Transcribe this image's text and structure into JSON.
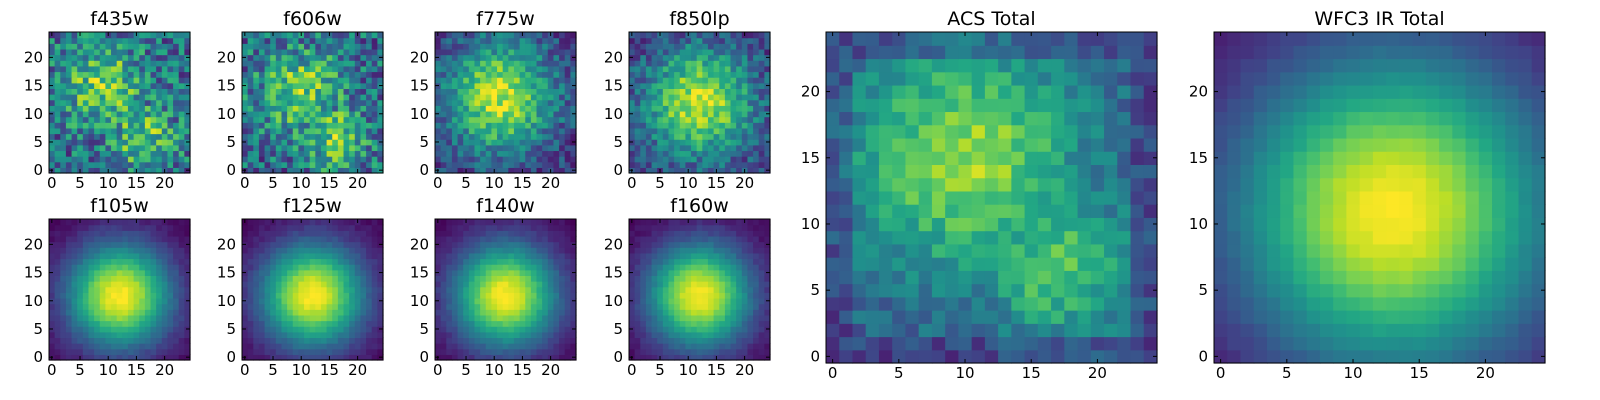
{
  "chart_data": {
    "type": "heatmap",
    "colormap": "viridis",
    "grid": false,
    "panels": [
      {
        "id": "f435w",
        "title": "f435w",
        "grid_size": 25,
        "xlim": [
          0,
          24
        ],
        "ylim": [
          0,
          24
        ],
        "xticks": [
          0,
          5,
          10,
          15,
          20
        ],
        "yticks": [
          0,
          5,
          10,
          15,
          20
        ],
        "peak": [
          9,
          15
        ],
        "pattern": "noisy-double"
      },
      {
        "id": "f606w",
        "title": "f606w",
        "grid_size": 25,
        "xlim": [
          0,
          24
        ],
        "ylim": [
          0,
          24
        ],
        "xticks": [
          0,
          5,
          10,
          15,
          20
        ],
        "yticks": [
          0,
          5,
          10,
          15,
          20
        ],
        "peak": [
          10,
          14
        ],
        "pattern": "noisy-double"
      },
      {
        "id": "f775w",
        "title": "f775w",
        "grid_size": 25,
        "xlim": [
          0,
          24
        ],
        "ylim": [
          0,
          24
        ],
        "xticks": [
          0,
          5,
          10,
          15,
          20
        ],
        "yticks": [
          0,
          5,
          10,
          15,
          20
        ],
        "peak": [
          11,
          13
        ],
        "pattern": "noisy"
      },
      {
        "id": "f850lp",
        "title": "f850lp",
        "grid_size": 25,
        "xlim": [
          0,
          24
        ],
        "ylim": [
          0,
          24
        ],
        "xticks": [
          0,
          5,
          10,
          15,
          20
        ],
        "yticks": [
          0,
          5,
          10,
          15,
          20
        ],
        "peak": [
          12,
          12
        ],
        "pattern": "noisy"
      },
      {
        "id": "f105w",
        "title": "f105w",
        "grid_size": 25,
        "xlim": [
          0,
          24
        ],
        "ylim": [
          0,
          24
        ],
        "xticks": [
          0,
          5,
          10,
          15,
          20
        ],
        "yticks": [
          0,
          5,
          10,
          15,
          20
        ],
        "peak": [
          12,
          11
        ],
        "pattern": "smooth"
      },
      {
        "id": "f125w",
        "title": "f125w",
        "grid_size": 25,
        "xlim": [
          0,
          24
        ],
        "ylim": [
          0,
          24
        ],
        "xticks": [
          0,
          5,
          10,
          15,
          20
        ],
        "yticks": [
          0,
          5,
          10,
          15,
          20
        ],
        "peak": [
          12,
          11
        ],
        "pattern": "smooth"
      },
      {
        "id": "f140w",
        "title": "f140w",
        "grid_size": 25,
        "xlim": [
          0,
          24
        ],
        "ylim": [
          0,
          24
        ],
        "xticks": [
          0,
          5,
          10,
          15,
          20
        ],
        "yticks": [
          0,
          5,
          10,
          15,
          20
        ],
        "peak": [
          12,
          11
        ],
        "pattern": "smooth"
      },
      {
        "id": "f160w",
        "title": "f160w",
        "grid_size": 25,
        "xlim": [
          0,
          24
        ],
        "ylim": [
          0,
          24
        ],
        "xticks": [
          0,
          5,
          10,
          15,
          20
        ],
        "yticks": [
          0,
          5,
          10,
          15,
          20
        ],
        "peak": [
          12,
          11
        ],
        "pattern": "smooth"
      },
      {
        "id": "acs-total",
        "title": "ACS Total",
        "grid_size": 25,
        "xlim": [
          0,
          24
        ],
        "ylim": [
          0,
          24
        ],
        "xticks": [
          0,
          5,
          10,
          15,
          20
        ],
        "yticks": [
          0,
          5,
          10,
          15,
          20
        ],
        "peak": [
          10,
          15
        ],
        "pattern": "acs-total"
      },
      {
        "id": "wfc3-ir-total",
        "title": "WFC3 IR Total",
        "grid_size": 25,
        "xlim": [
          0,
          24
        ],
        "ylim": [
          0,
          24
        ],
        "xticks": [
          0,
          5,
          10,
          15,
          20
        ],
        "yticks": [
          0,
          5,
          10,
          15,
          20
        ],
        "peak": [
          13,
          11
        ],
        "pattern": "smooth-wide"
      }
    ]
  }
}
